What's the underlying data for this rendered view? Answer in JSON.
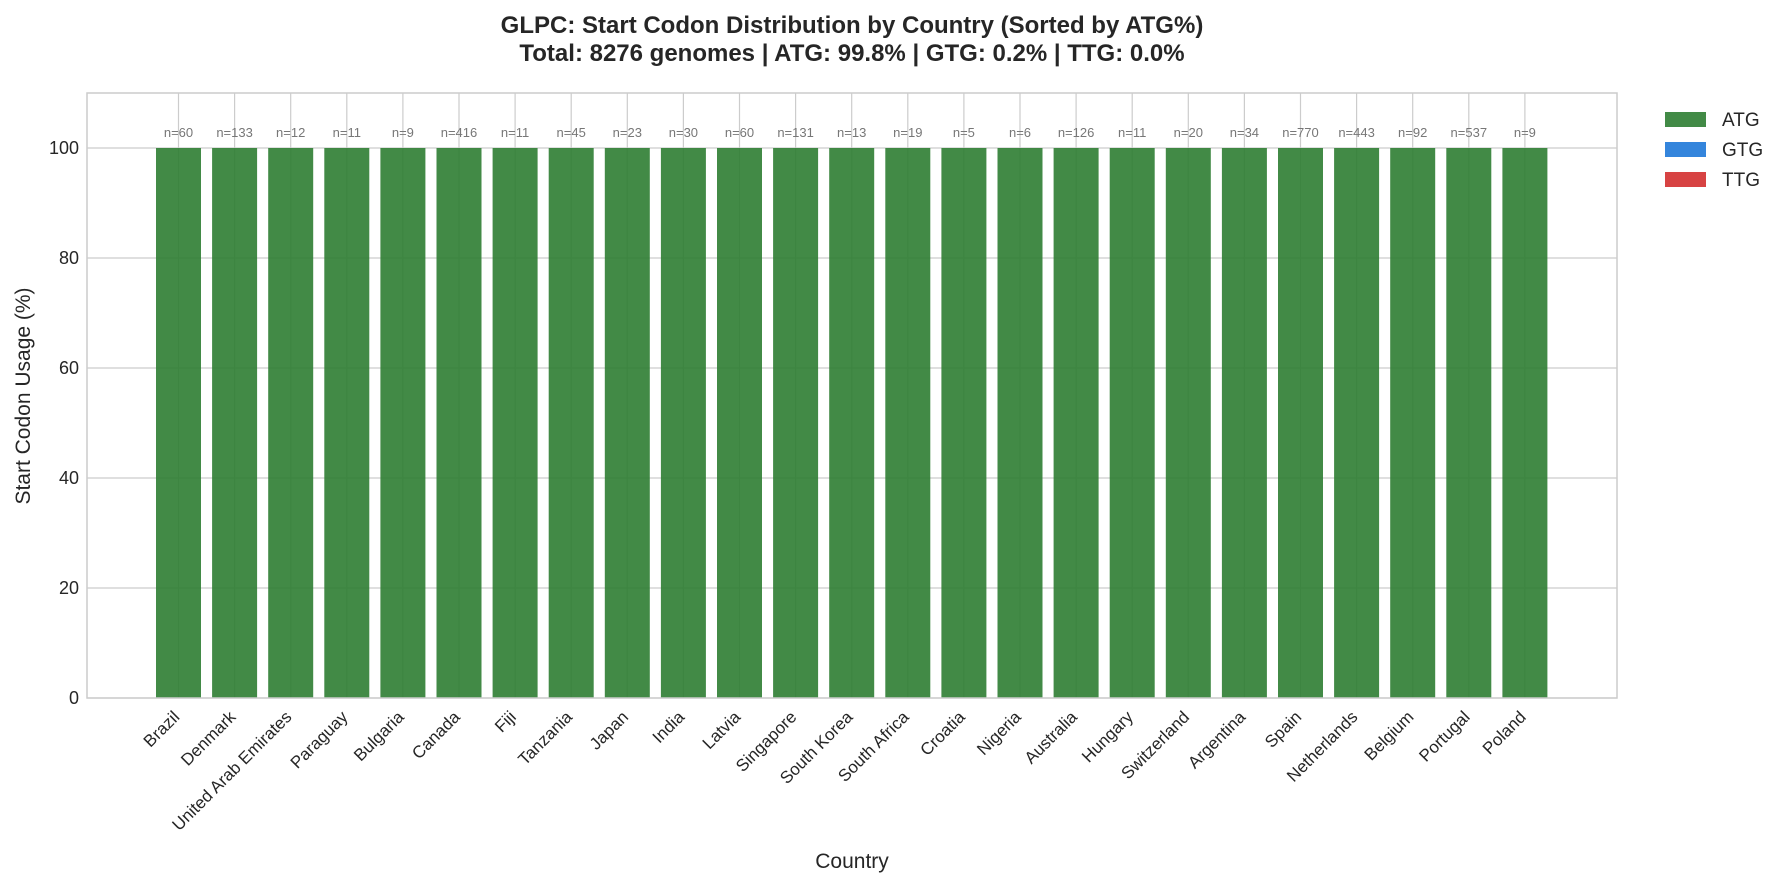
{
  "chart_data": {
    "type": "bar",
    "stacked": true,
    "title": "GLPC: Start Codon Distribution by Country (Sorted by ATG%)",
    "subtitle": "Total: 8276 genomes | ATG: 99.8% | GTG: 0.2% | TTG: 0.0%",
    "xlabel": "Country",
    "ylabel": "Start Codon Usage (%)",
    "ylim": [
      0,
      110
    ],
    "yticks": [
      0,
      20,
      40,
      60,
      80,
      100
    ],
    "grid": true,
    "legend_position": "outside-top-right",
    "categories": [
      "Brazil",
      "Denmark",
      "United Arab Emirates",
      "Paraguay",
      "Bulgaria",
      "Canada",
      "Fiji",
      "Tanzania",
      "Japan",
      "India",
      "Latvia",
      "Singapore",
      "South Korea",
      "South Africa",
      "Croatia",
      "Nigeria",
      "Australia",
      "Hungary",
      "Switzerland",
      "Argentina",
      "Spain",
      "Netherlands",
      "Belgium",
      "Portugal",
      "Poland"
    ],
    "n_labels": [
      "n=60",
      "n=133",
      "n=12",
      "n=11",
      "n=9",
      "n=416",
      "n=11",
      "n=45",
      "n=23",
      "n=30",
      "n=60",
      "n=131",
      "n=13",
      "n=19",
      "n=5",
      "n=6",
      "n=126",
      "n=11",
      "n=20",
      "n=34",
      "n=770",
      "n=443",
      "n=92",
      "n=537",
      "n=9"
    ],
    "series": [
      {
        "name": "ATG",
        "color": "#2e7d32",
        "values": [
          100,
          100,
          100,
          100,
          100,
          100,
          100,
          100,
          100,
          100,
          100,
          100,
          100,
          100,
          100,
          100,
          100,
          100,
          100,
          100,
          100,
          100,
          100,
          100,
          100
        ]
      },
      {
        "name": "GTG",
        "color": "#1e78d8",
        "values": [
          0,
          0,
          0,
          0,
          0,
          0,
          0,
          0,
          0,
          0,
          0,
          0,
          0,
          0,
          0,
          0,
          0,
          0,
          0,
          0,
          0,
          0,
          0,
          0,
          0
        ]
      },
      {
        "name": "TTG",
        "color": "#d32f2f",
        "values": [
          0,
          0,
          0,
          0,
          0,
          0,
          0,
          0,
          0,
          0,
          0,
          0,
          0,
          0,
          0,
          0,
          0,
          0,
          0,
          0,
          0,
          0,
          0,
          0,
          0
        ]
      }
    ]
  }
}
